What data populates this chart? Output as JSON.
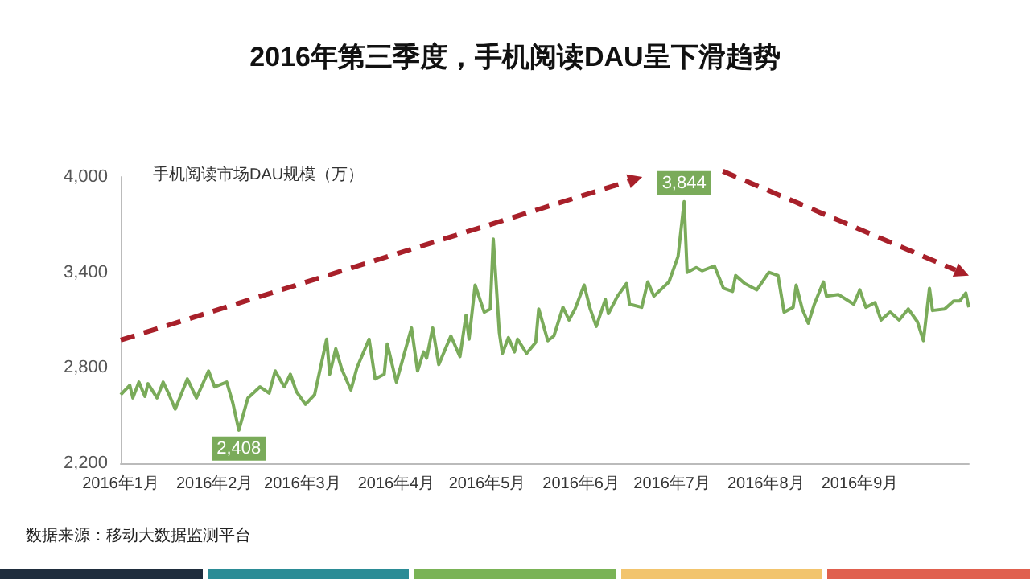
{
  "chart_data": {
    "type": "line",
    "title": "2016年第三季度，手机阅读DAU呈下滑趋势",
    "ylabel": "手机阅读市场DAU规模（万）",
    "annotations": [
      "数据来源：移动大数据监测平台"
    ],
    "x": [
      "2016-01-01",
      "2016-01-04",
      "2016-01-05",
      "2016-01-07",
      "2016-01-09",
      "2016-01-10",
      "2016-01-13",
      "2016-01-15",
      "2016-01-17",
      "2016-01-19",
      "2016-01-23",
      "2016-01-26",
      "2016-01-30",
      "2016-02-01",
      "2016-02-05",
      "2016-02-07",
      "2016-02-09",
      "2016-02-12",
      "2016-02-16",
      "2016-02-19",
      "2016-02-21",
      "2016-02-24",
      "2016-02-26",
      "2016-02-28",
      "2016-03-02",
      "2016-03-05",
      "2016-03-09",
      "2016-03-10",
      "2016-03-12",
      "2016-03-14",
      "2016-03-17",
      "2016-03-19",
      "2016-03-23",
      "2016-03-25",
      "2016-03-28",
      "2016-03-29",
      "2016-04-01",
      "2016-04-06",
      "2016-04-08",
      "2016-04-10",
      "2016-04-11",
      "2016-04-13",
      "2016-04-15",
      "2016-04-19",
      "2016-04-22",
      "2016-04-24",
      "2016-04-25",
      "2016-04-27",
      "2016-04-30",
      "2016-05-02",
      "2016-05-03",
      "2016-05-05",
      "2016-05-06",
      "2016-05-08",
      "2016-05-10",
      "2016-05-11",
      "2016-05-14",
      "2016-05-17",
      "2016-05-18",
      "2016-05-21",
      "2016-05-23",
      "2016-05-26",
      "2016-05-28",
      "2016-05-30",
      "2016-06-02",
      "2016-06-04",
      "2016-06-06",
      "2016-06-09",
      "2016-06-10",
      "2016-06-13",
      "2016-06-16",
      "2016-06-17",
      "2016-06-21",
      "2016-06-23",
      "2016-06-25",
      "2016-06-30",
      "2016-07-03",
      "2016-07-05",
      "2016-07-06",
      "2016-07-09",
      "2016-07-11",
      "2016-07-15",
      "2016-07-18",
      "2016-07-21",
      "2016-07-22",
      "2016-07-25",
      "2016-07-29",
      "2016-08-02",
      "2016-08-05",
      "2016-08-07",
      "2016-08-10",
      "2016-08-11",
      "2016-08-13",
      "2016-08-15",
      "2016-08-17",
      "2016-08-20",
      "2016-08-21",
      "2016-08-25",
      "2016-08-30",
      "2016-09-01",
      "2016-09-03",
      "2016-09-06",
      "2016-09-08",
      "2016-09-11",
      "2016-09-14",
      "2016-09-17",
      "2016-09-20",
      "2016-09-22",
      "2016-09-24",
      "2016-09-25",
      "2016-09-29",
      "2016-10-02",
      "2016-10-04",
      "2016-10-06",
      "2016-10-07"
    ],
    "series": [
      {
        "color": "#7aab5a",
        "values": [
          2630,
          2690,
          2610,
          2710,
          2620,
          2700,
          2610,
          2710,
          2630,
          2540,
          2730,
          2610,
          2780,
          2680,
          2710,
          2580,
          2408,
          2610,
          2680,
          2640,
          2780,
          2680,
          2760,
          2650,
          2570,
          2630,
          2980,
          2760,
          2920,
          2790,
          2660,
          2800,
          2980,
          2730,
          2760,
          2950,
          2710,
          3050,
          2780,
          2900,
          2860,
          3050,
          2820,
          3000,
          2870,
          3130,
          2980,
          3320,
          3150,
          3170,
          3610,
          3020,
          2890,
          2990,
          2900,
          2980,
          2890,
          2960,
          3170,
          2970,
          3000,
          3180,
          3100,
          3170,
          3320,
          3170,
          3060,
          3230,
          3140,
          3250,
          3330,
          3200,
          3180,
          3340,
          3250,
          3340,
          3500,
          3844,
          3400,
          3430,
          3410,
          3440,
          3300,
          3280,
          3380,
          3330,
          3290,
          3400,
          3380,
          3150,
          3180,
          3320,
          3170,
          3080,
          3200,
          3340,
          3250,
          3260,
          3200,
          3290,
          3180,
          3210,
          3100,
          3150,
          3100,
          3170,
          3090,
          2970,
          3300,
          3160,
          3170,
          3220,
          3220,
          3270,
          3180
        ],
        "value_labels": [
          null,
          null,
          null,
          null,
          null,
          null,
          null,
          null,
          null,
          null,
          null,
          null,
          null,
          null,
          null,
          null,
          "2,408",
          null,
          null,
          null,
          null,
          null,
          null,
          null,
          null,
          null,
          null,
          null,
          null,
          null,
          null,
          null,
          null,
          null,
          null,
          null,
          null,
          null,
          null,
          null,
          null,
          null,
          null,
          null,
          null,
          null,
          null,
          null,
          null,
          null,
          null,
          null,
          null,
          null,
          null,
          null,
          null,
          null,
          null,
          null,
          null,
          null,
          null,
          null,
          null,
          null,
          null,
          null,
          null,
          null,
          null,
          null,
          null,
          null,
          null,
          null,
          null,
          "3,844",
          null,
          null,
          null,
          null,
          null,
          null,
          null,
          null,
          null,
          null,
          null,
          null,
          null,
          null,
          null,
          null,
          null,
          null,
          null,
          null,
          null,
          null,
          null,
          null,
          null,
          null,
          null,
          null,
          null,
          null,
          null,
          null,
          null,
          null,
          null,
          null,
          null
        ]
      }
    ],
    "xlim": [
      "2016-01-01",
      "2016-10-07"
    ],
    "xticks": [
      {
        "value": "2016-01-01",
        "label": "2016年1月"
      },
      {
        "value": "2016-02-01",
        "label": "2016年2月"
      },
      {
        "value": "2016-03-01",
        "label": "2016年3月"
      },
      {
        "value": "2016-04-01",
        "label": "2016年4月"
      },
      {
        "value": "2016-05-01",
        "label": "2016年5月"
      },
      {
        "value": "2016-06-01",
        "label": "2016年6月"
      },
      {
        "value": "2016-07-01",
        "label": "2016年7月"
      },
      {
        "value": "2016-08-01",
        "label": "2016年8月"
      },
      {
        "value": "2016-09-01",
        "label": "2016年9月"
      }
    ],
    "ylim": [
      2200,
      4000
    ],
    "yticks": [
      {
        "value": 2200,
        "label": "2,200"
      },
      {
        "value": 2800,
        "label": "2,800"
      },
      {
        "value": 3400,
        "label": "3,400"
      },
      {
        "value": 4000,
        "label": "4,000"
      }
    ],
    "grid": false,
    "marker": "none",
    "line_style": "solid"
  }
}
